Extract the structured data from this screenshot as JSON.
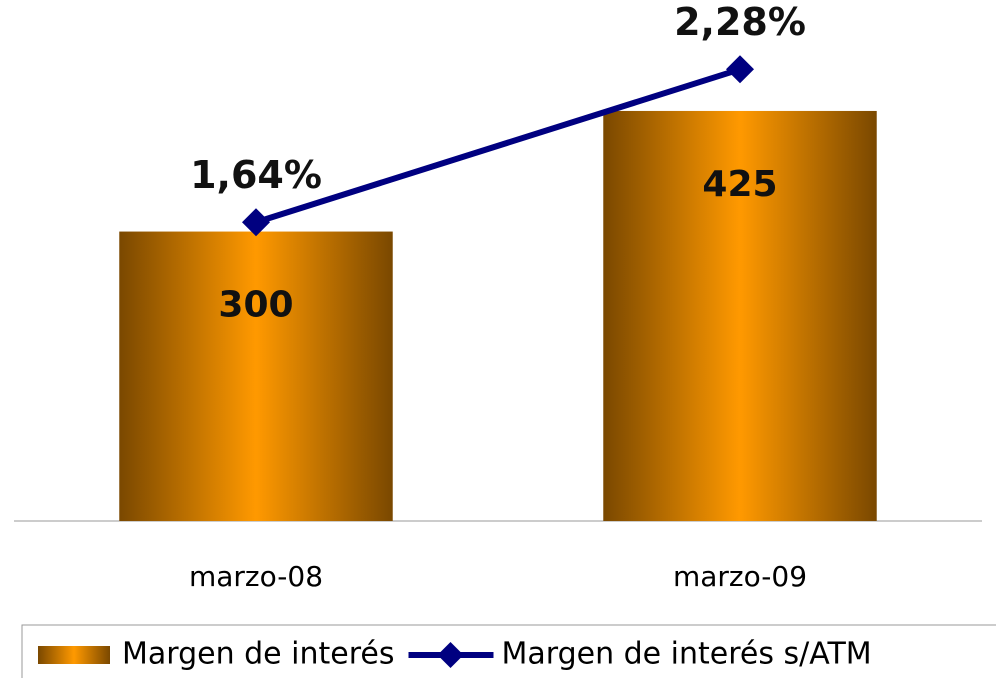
{
  "chart_data": {
    "type": "bar",
    "categories": [
      "marzo-08",
      "marzo-09"
    ],
    "series": [
      {
        "name": "Margen de interés",
        "color": "#ff9900",
        "values": [
          300,
          425
        ]
      },
      {
        "name": "Margen de interés s/ATM",
        "type": "line",
        "axis": "y2",
        "color": "#000080",
        "values": [
          1.64,
          2.28
        ],
        "value_labels": [
          "1,64%",
          "2,28%"
        ]
      }
    ],
    "ylim": [
      0,
      540
    ],
    "y2lim": [
      0.39,
      2.57
    ],
    "legend": "bottom"
  }
}
